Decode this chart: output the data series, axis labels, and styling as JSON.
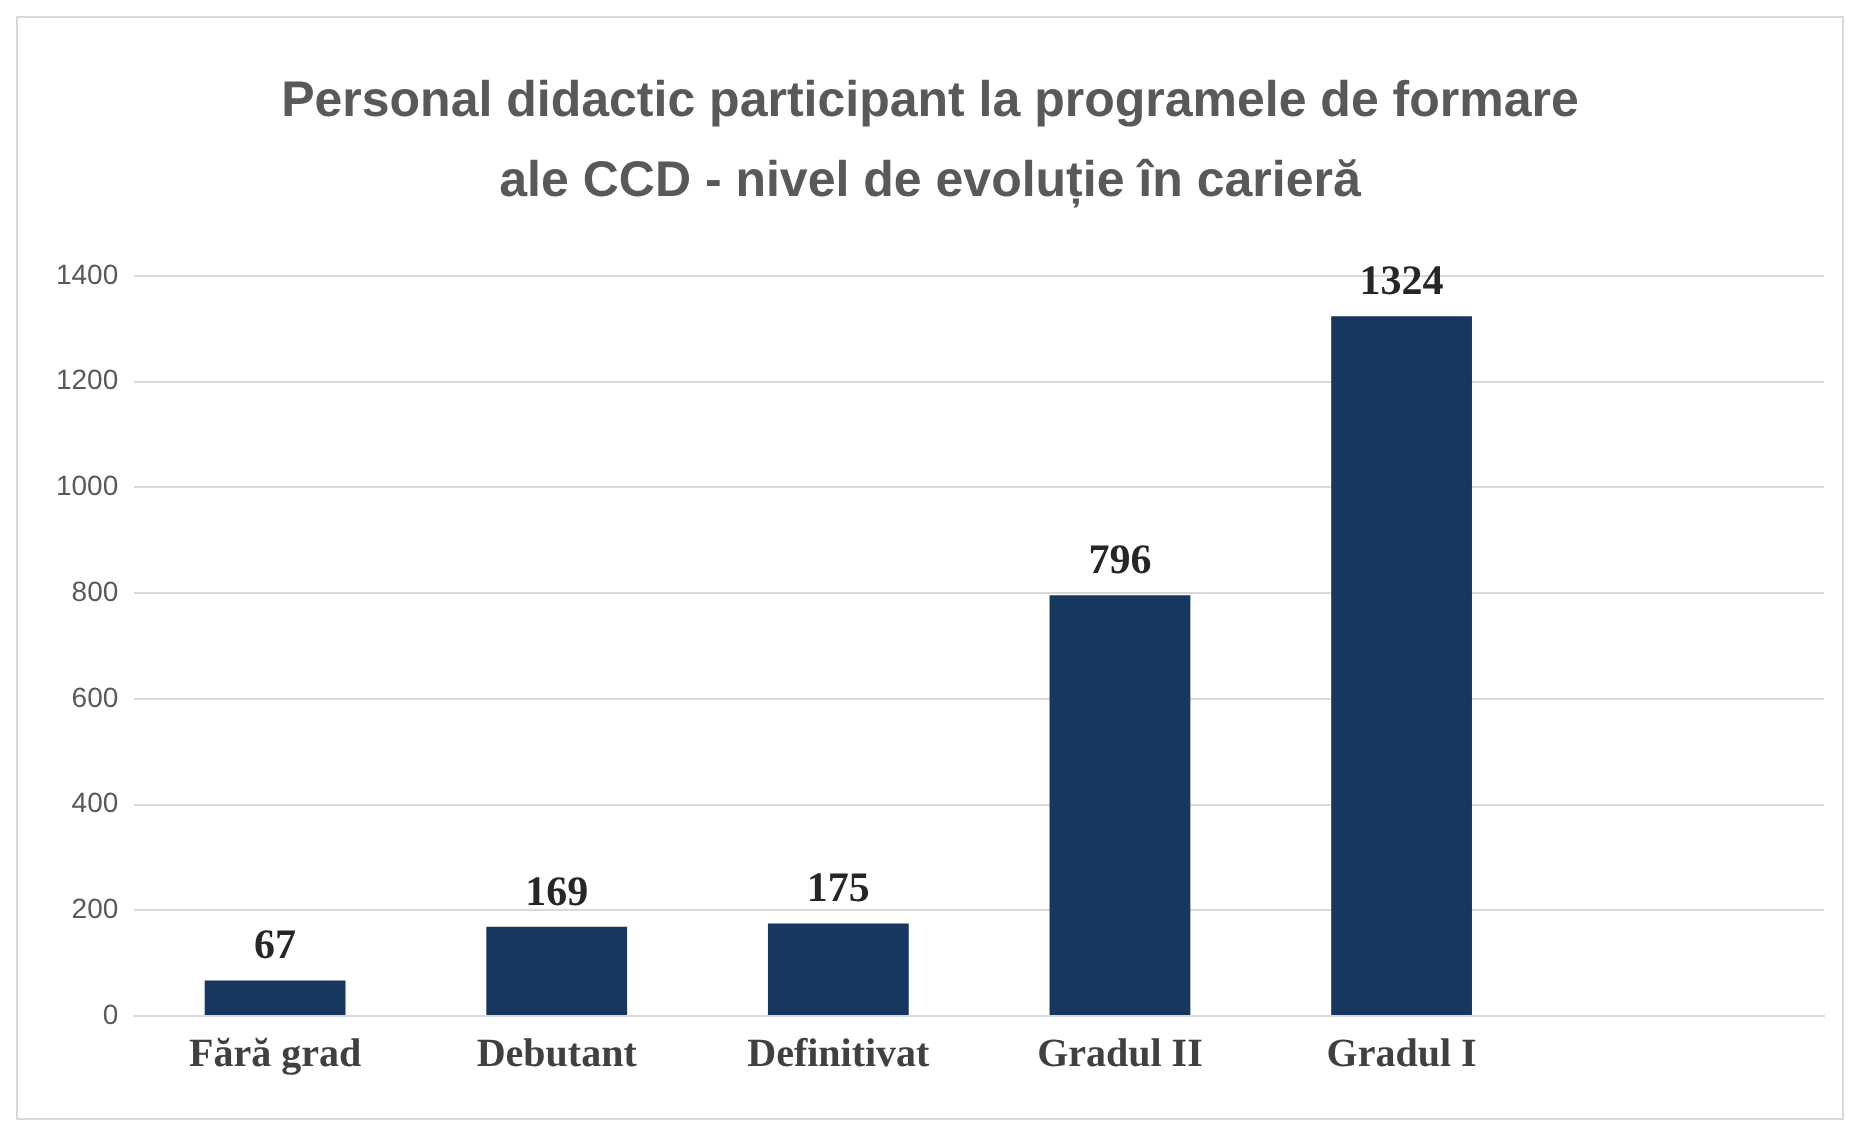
{
  "chart_data": {
    "type": "bar",
    "title": "Personal didactic participant la programele de formare ale CCD - nivel de evoluție în carieră",
    "categories": [
      "Fără grad",
      "Debutant",
      "Definitivat",
      "Gradul II",
      "Gradul I",
      null
    ],
    "values": [
      67,
      169,
      175,
      796,
      1324,
      null
    ],
    "color": "#17375e",
    "ylim": [
      0,
      1400
    ],
    "yticks": [
      0,
      200,
      400,
      600,
      800,
      1000,
      1200,
      1400
    ],
    "grid": "y",
    "data_labels": true
  }
}
